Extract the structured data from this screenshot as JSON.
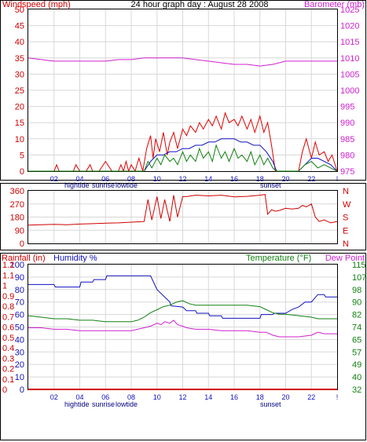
{
  "colors": {
    "wind": "#e00000",
    "avg_wind": "#1010c0",
    "gust_low": "#108010",
    "barometer": "#d020d0",
    "direction": "#d00000",
    "rainfall": "#d00000",
    "humidity": "#1010c0",
    "temperature": "#108010",
    "dew_point": "#d020d0",
    "grid": "#d8d8d8",
    "axis_left_red": "#d00000",
    "axis_right_magenta": "#d020d0",
    "axis_right_green": "#108010",
    "axis_left_blue": "#1010c0"
  },
  "chart_data": [
    {
      "type": "line",
      "id": "wind-baro",
      "title": "24 hour graph day : August 28 2008",
      "left_axis_label": "Windspeed (mph)",
      "right_axis_label": "Barometer (mb)",
      "left_ticks": [
        "0",
        "5",
        "10",
        "15",
        "20",
        "25",
        "30",
        "35",
        "40",
        "45",
        "50"
      ],
      "right_ticks": [
        "975",
        "980",
        "985",
        "990",
        "995",
        "1000",
        "1005",
        "1010",
        "1015",
        "1020",
        "1025"
      ],
      "left_range": [
        0,
        50
      ],
      "right_range": [
        975,
        1025
      ],
      "x_range": [
        0,
        24
      ],
      "x_ticks": [
        "02",
        "04",
        "06",
        "08",
        "10",
        "12",
        "14",
        "16",
        "18",
        "20",
        "22",
        "!"
      ],
      "event_labels": [
        "hightide",
        "sunrise",
        "lowtide",
        "sunset"
      ],
      "series": [
        {
          "key": "barometer",
          "axis": "right",
          "x": [
            0,
            1,
            2,
            3,
            4,
            5,
            6,
            7,
            8,
            9,
            10,
            11,
            12,
            13,
            14,
            15,
            16,
            17,
            18,
            19,
            20,
            21,
            22,
            23,
            24
          ],
          "y": [
            1010,
            1009.5,
            1009,
            1009,
            1009,
            1009,
            1009,
            1009.5,
            1009.5,
            1010,
            1010,
            1010,
            1010,
            1009.5,
            1009,
            1008.5,
            1008,
            1008,
            1007.5,
            1008,
            1009,
            1009,
            1009,
            1009,
            1009
          ]
        },
        {
          "key": "wind",
          "axis": "left",
          "x": [
            0,
            2,
            2.2,
            2.4,
            3,
            3.5,
            3.7,
            4,
            4.5,
            4.8,
            5,
            5.5,
            6,
            6.5,
            7,
            7.2,
            7.4,
            7.6,
            7.8,
            8,
            8.3,
            8.6,
            8.9,
            9.2,
            9.5,
            9.7,
            9.9,
            10.2,
            10.5,
            10.8,
            11,
            11.3,
            11.6,
            12,
            12.3,
            12.6,
            13,
            13.3,
            13.6,
            14,
            14.3,
            14.6,
            15,
            15.3,
            15.6,
            16,
            16.3,
            16.6,
            17,
            17.3,
            17.6,
            18,
            18.3,
            18.6,
            18.9,
            19.2,
            19.5,
            20,
            21,
            21.3,
            21.6,
            22,
            22.3,
            22.6,
            23,
            23.3,
            23.6,
            24
          ],
          "y": [
            0,
            0,
            2,
            0,
            0,
            0,
            2,
            0,
            0,
            2,
            0,
            0,
            3,
            0,
            0,
            2,
            0,
            3,
            0,
            2,
            0,
            4,
            0,
            7,
            11,
            4,
            10,
            6,
            12,
            5,
            9,
            12,
            7,
            13,
            11,
            14,
            12,
            15,
            13,
            16,
            14,
            17,
            13,
            18,
            15,
            16,
            14,
            17,
            13,
            16,
            12,
            17,
            12,
            15,
            8,
            0,
            0,
            0,
            0,
            6,
            10,
            4,
            9,
            5,
            6,
            3,
            5,
            0
          ]
        },
        {
          "key": "avg_wind",
          "axis": "left",
          "x": [
            0,
            8,
            9,
            9.5,
            10,
            10.5,
            11,
            11.5,
            12,
            12.5,
            13,
            13.5,
            14,
            14.5,
            15,
            15.5,
            16,
            16.5,
            17,
            17.5,
            18,
            18.5,
            19,
            19.3,
            21,
            21.5,
            22,
            22.5,
            23,
            23.5,
            24
          ],
          "y": [
            0,
            0,
            0,
            3,
            5,
            5,
            6,
            6,
            7,
            7,
            8,
            8,
            9,
            9,
            10,
            10,
            10,
            9,
            9,
            8,
            8,
            6,
            3,
            0,
            0,
            2,
            4,
            4,
            3,
            2,
            0
          ]
        },
        {
          "key": "gust_low",
          "axis": "left",
          "x": [
            0,
            8,
            9,
            9.3,
            9.6,
            10,
            10.3,
            10.6,
            11,
            11.3,
            11.6,
            12,
            12.3,
            12.6,
            13,
            13.3,
            13.6,
            14,
            14.3,
            14.6,
            15,
            15.3,
            15.6,
            16,
            16.3,
            16.6,
            17,
            17.3,
            17.6,
            18,
            18.3,
            18.6,
            19,
            19.3,
            21,
            21.5,
            22,
            22.5,
            23,
            23.5,
            24
          ],
          "y": [
            0,
            0,
            0,
            3,
            1,
            4,
            2,
            5,
            3,
            4,
            2,
            6,
            3,
            5,
            3,
            7,
            4,
            6,
            3,
            8,
            4,
            6,
            3,
            7,
            4,
            5,
            3,
            6,
            2,
            5,
            2,
            4,
            1,
            0,
            0,
            2,
            3,
            1,
            2,
            1,
            0
          ]
        }
      ]
    },
    {
      "type": "line",
      "id": "direction",
      "left_ticks": [
        "0",
        "90",
        "180",
        "270",
        "360"
      ],
      "right_ticks": [
        "N",
        "E",
        "S",
        "W",
        "N"
      ],
      "left_range": [
        0,
        360
      ],
      "x_range": [
        0,
        24
      ],
      "series": [
        {
          "key": "direction",
          "axis": "left",
          "x": [
            0,
            1,
            2,
            3,
            4,
            5,
            6,
            7,
            8,
            9,
            9.3,
            9.6,
            10,
            10.3,
            10.6,
            11,
            11.3,
            11.6,
            12,
            12.3,
            13,
            14,
            15,
            16,
            17,
            18,
            18.4,
            18.6,
            18.9,
            19.2,
            19.5,
            20,
            20.5,
            21,
            21.3,
            21.6,
            22,
            22.3,
            22.6,
            23,
            23.5,
            24
          ],
          "y": [
            125,
            128,
            130,
            128,
            132,
            135,
            138,
            140,
            145,
            150,
            300,
            160,
            320,
            170,
            300,
            150,
            330,
            180,
            320,
            320,
            330,
            325,
            330,
            318,
            322,
            330,
            335,
            200,
            230,
            220,
            225,
            240,
            235,
            240,
            260,
            250,
            270,
            180,
            150,
            160,
            140,
            150
          ]
        }
      ]
    },
    {
      "type": "line",
      "id": "rain-hum-temp",
      "left_outer_label": "Rainfall (in)",
      "left_inner_label": "Humidity %",
      "right_inner_label": "Temperature (°F)",
      "right_outer_label": "Dew Point",
      "rain_ticks": [
        "0",
        "0.1",
        "0.2",
        "0.3",
        "0.4",
        "0.5",
        "0.6",
        "0.7",
        "0.8",
        "0.9",
        "1",
        "1.1",
        "1.2"
      ],
      "humidity_ticks": [
        "0",
        "10",
        "20",
        "30",
        "40",
        "50",
        "60",
        "70",
        "80",
        "90",
        "100"
      ],
      "temp_ticks": [
        "32",
        "40",
        "49",
        "57",
        "65",
        "74",
        "82",
        "90",
        "98",
        "107",
        "115"
      ],
      "rain_range": [
        0,
        1.2
      ],
      "humidity_range": [
        0,
        100
      ],
      "temp_range": [
        32,
        115
      ],
      "x_range": [
        0,
        24
      ],
      "x_ticks": [
        "02",
        "04",
        "06",
        "08",
        "10",
        "12",
        "14",
        "16",
        "18",
        "20",
        "22",
        "!"
      ],
      "event_labels": [
        "hightide",
        "sunrise",
        "lowtide",
        "sunset"
      ],
      "series": [
        {
          "key": "rainfall",
          "axis": "rain",
          "x": [
            0,
            24
          ],
          "y": [
            0,
            0
          ]
        },
        {
          "key": "humidity",
          "axis": "humidity",
          "x": [
            0,
            2,
            2.1,
            4,
            4.1,
            5,
            5.1,
            6,
            6.1,
            8,
            8.1,
            9.5,
            10,
            11,
            11.1,
            12,
            12.3,
            13,
            13.1,
            14,
            14.1,
            15,
            15.1,
            16,
            16.1,
            18,
            18.1,
            19,
            19.1,
            20,
            20.5,
            21,
            21.5,
            22,
            22.5,
            23,
            23.1,
            24
          ],
          "y": [
            84,
            84,
            82,
            82,
            86,
            86,
            88,
            88,
            91,
            91,
            91,
            91,
            80,
            70,
            67,
            66,
            63,
            63,
            61,
            61,
            59,
            59,
            57,
            57,
            57,
            57,
            60,
            60,
            61,
            61,
            64,
            66,
            70,
            70,
            76,
            76,
            74,
            74
          ]
        },
        {
          "key": "temperature",
          "axis": "temp",
          "x": [
            0,
            1,
            2,
            3,
            4,
            5,
            6,
            7,
            8,
            8.5,
            9,
            9.5,
            10,
            10.5,
            11,
            11.5,
            12,
            12.5,
            13,
            14,
            15,
            16,
            17,
            18,
            18.5,
            19,
            19.5,
            20,
            21,
            22,
            22.5,
            23,
            24
          ],
          "y": [
            81,
            80,
            79,
            79,
            78,
            78,
            77,
            77,
            77,
            78,
            80,
            83,
            85,
            87,
            88,
            90,
            91,
            89,
            88,
            88,
            88,
            88,
            88,
            87,
            85,
            83,
            82,
            82,
            81,
            80,
            79,
            79,
            79
          ]
        },
        {
          "key": "dew_point",
          "axis": "temp",
          "x": [
            0,
            1,
            2,
            3,
            4,
            5,
            6,
            7,
            8,
            8.5,
            9,
            9.5,
            10,
            10.3,
            10.6,
            11,
            11.3,
            11.6,
            12,
            12.3,
            13,
            14,
            15,
            16,
            17,
            18,
            18.5,
            19,
            19.5,
            20,
            21,
            22,
            22.5,
            23,
            24
          ],
          "y": [
            73,
            73,
            72,
            72,
            71,
            71,
            71,
            71,
            71,
            72,
            73,
            74,
            76,
            75,
            77,
            76,
            78,
            75,
            74,
            73,
            72,
            72,
            71,
            71,
            71,
            70,
            70,
            68,
            67,
            67,
            67,
            68,
            70,
            69,
            69
          ]
        }
      ]
    }
  ]
}
